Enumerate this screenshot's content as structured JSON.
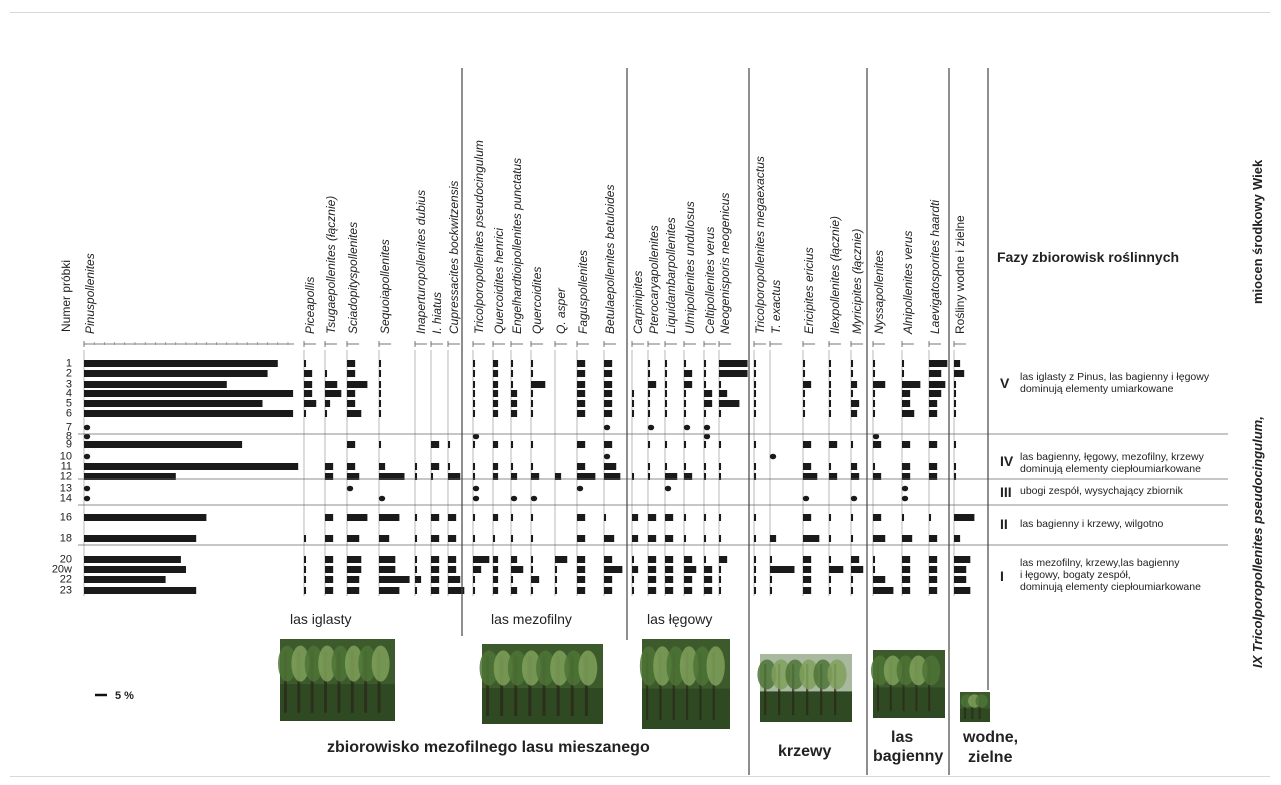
{
  "chart_data": {
    "type": "bar",
    "subtype": "pollen-diagram",
    "unit_scale_label": "5 %",
    "sample_header": "Numer próbki",
    "samples": [
      "1",
      "2",
      "3",
      "4",
      "5",
      "6",
      "7",
      "8",
      "9",
      "10",
      "11",
      "12",
      "13",
      "14",
      "16",
      "18",
      "20",
      "20w",
      "22",
      "23"
    ],
    "taxa": [
      {
        "name": "Pinuspollenites",
        "style": "italic",
        "values": [
          19,
          18,
          14,
          20.5,
          17.5,
          20.5,
          0,
          0,
          15.5,
          0,
          21,
          9,
          0,
          0,
          12,
          11,
          9.5,
          10,
          8,
          11
        ]
      },
      {
        "name": "Piceapollis",
        "style": "italic",
        "values": [
          0.2,
          0.8,
          0.8,
          0.8,
          1.2,
          0.2,
          0,
          0,
          0,
          0,
          0,
          0,
          0,
          0,
          0,
          0.2,
          0.2,
          0.2,
          0.2,
          0.2
        ]
      },
      {
        "name": "Tsugaepollenites (łącznie)",
        "style": "italic",
        "values": [
          0,
          0.2,
          1.2,
          1.6,
          0.5,
          0.2,
          0,
          0,
          0,
          0,
          0.8,
          0.8,
          0,
          0,
          0.8,
          0.8,
          0.8,
          0.8,
          0.8,
          0.8
        ]
      },
      {
        "name": "Sciadopityspollenites",
        "style": "italic",
        "values": [
          0.8,
          0.8,
          2,
          0.8,
          0.8,
          1.4,
          0,
          0,
          0.8,
          0,
          0.8,
          1.2,
          0,
          0,
          2,
          1.2,
          1.4,
          1.4,
          1.2,
          1.2
        ]
      },
      {
        "name": "Sequoiapollenites",
        "style": "italic",
        "values": [
          0.2,
          0.2,
          0.2,
          0.2,
          0.2,
          0.2,
          0,
          0,
          0.2,
          0,
          0.6,
          2.5,
          0,
          0,
          2,
          1,
          1.6,
          1.6,
          3,
          2
        ]
      },
      {
        "name": "Inaperturopollenites dubius",
        "style": "italic",
        "values": [
          0,
          0,
          0,
          0,
          0,
          0,
          0,
          0,
          0,
          0,
          0.2,
          0.2,
          0,
          0,
          0.2,
          0.2,
          0.2,
          0.2,
          0.6,
          0.2
        ]
      },
      {
        "name": "I. hiatus",
        "style": "italic",
        "values": [
          0,
          0,
          0,
          0,
          0,
          0,
          0,
          0,
          0.8,
          0,
          0.8,
          0.2,
          0,
          0,
          0.8,
          0.8,
          0.8,
          0.8,
          0.8,
          0.8
        ]
      },
      {
        "name": "Cupressacites bockwitzensis",
        "style": "italic",
        "values": [
          0,
          0,
          0,
          0,
          0,
          0,
          0,
          0,
          0.2,
          0,
          0.2,
          1.2,
          0,
          0,
          0.8,
          0.8,
          0.8,
          0.8,
          1.2,
          1.6
        ]
      },
      {
        "name": "Tricolporopollenites pseudocingulum",
        "style": "italic",
        "values": [
          0.2,
          0.2,
          0.2,
          0.2,
          0.2,
          0.2,
          0,
          0,
          0.2,
          0,
          0.2,
          0.2,
          0,
          0,
          0.2,
          0.2,
          1.6,
          0.8,
          0.2,
          0.2
        ]
      },
      {
        "name": "Quercoidites henrici",
        "style": "italic",
        "values": [
          0.5,
          0.5,
          0.5,
          0.5,
          0.5,
          0.5,
          0,
          0,
          0.5,
          0,
          0.5,
          0.5,
          0,
          0,
          0.5,
          0.2,
          0.5,
          0.5,
          0.5,
          0.5
        ]
      },
      {
        "name": "Engelhardtioipollenites punctatus",
        "style": "italic",
        "values": [
          0.2,
          0.2,
          0.2,
          0.6,
          0.6,
          0.6,
          0,
          0,
          0.2,
          0,
          0.2,
          0.6,
          0,
          0,
          0.2,
          0.2,
          0.6,
          1.2,
          0.2,
          0.6
        ]
      },
      {
        "name": "Quercoidites",
        "style": "italic",
        "values": [
          0.2,
          0.2,
          1.4,
          0.2,
          0.2,
          0.2,
          0,
          0,
          0.2,
          0,
          0.2,
          0.8,
          0,
          0,
          0.2,
          0.2,
          0.2,
          0.2,
          0.8,
          0.2
        ]
      },
      {
        "name": "Q. asper",
        "style": "italic",
        "values": [
          0,
          0,
          0,
          0,
          0,
          0,
          0,
          0,
          0,
          0,
          0,
          0.6,
          0,
          0,
          0,
          0,
          1.2,
          0.2,
          0.2,
          0.2
        ]
      },
      {
        "name": "Faguspollenites",
        "style": "italic",
        "values": [
          0.8,
          0.8,
          0.8,
          0.8,
          0.8,
          0.8,
          0,
          0,
          0.8,
          0,
          0.8,
          1.8,
          0,
          0,
          0.8,
          0.8,
          0.8,
          0.8,
          0.8,
          0.8
        ]
      },
      {
        "name": "Betulaepollenites betuloides",
        "style": "italic",
        "values": [
          0.8,
          0.8,
          0.8,
          0.8,
          0.8,
          0.8,
          0,
          0,
          0.8,
          0,
          1.2,
          1.6,
          0,
          0,
          0.2,
          1,
          0.8,
          1.8,
          0.8,
          0.8
        ]
      },
      {
        "name": "Carpinipites",
        "style": "italic",
        "values": [
          0,
          0,
          0,
          0.2,
          0.2,
          0.2,
          0,
          0,
          0,
          0,
          0,
          0.2,
          0,
          0,
          0.6,
          0.6,
          0.2,
          0.6,
          0.2,
          0.2
        ]
      },
      {
        "name": "Pterocaryapollenites",
        "style": "italic",
        "values": [
          0.2,
          0.2,
          0.8,
          0.2,
          0.2,
          0.2,
          0,
          0,
          0.2,
          0,
          0.2,
          0.2,
          0,
          0,
          0.8,
          0.8,
          0.8,
          0.8,
          0.8,
          0.8
        ]
      },
      {
        "name": "Liquidambarpollenites",
        "style": "italic",
        "values": [
          0.2,
          0.2,
          0.2,
          0.2,
          0.2,
          0.2,
          0,
          0,
          0.2,
          0,
          0.2,
          1.2,
          0,
          0,
          0.8,
          0.8,
          0.8,
          0.8,
          0.8,
          0.8
        ]
      },
      {
        "name": "Ulmipollenites undulosus",
        "style": "italic",
        "values": [
          0.2,
          0.8,
          0.8,
          0.2,
          0.2,
          0.2,
          0,
          0,
          0.2,
          0,
          0.2,
          0.8,
          0,
          0,
          0.2,
          0.2,
          0.8,
          1.2,
          0.8,
          0.8
        ]
      },
      {
        "name": "Celtipollenites verus",
        "style": "italic",
        "values": [
          0.2,
          0.2,
          0.2,
          0.8,
          0.8,
          0.2,
          0,
          0,
          0.2,
          0,
          0.2,
          0.2,
          0,
          0,
          0.2,
          0.2,
          0.2,
          0.8,
          0.8,
          0.8
        ]
      },
      {
        "name": "Neogenisporis neogenicus",
        "style": "italic",
        "values": [
          2.8,
          2.8,
          0.2,
          0.8,
          2,
          0.2,
          0,
          0,
          0.2,
          0,
          0.2,
          0.2,
          0,
          0,
          0.2,
          0.2,
          0.8,
          0.2,
          0.2,
          0.2
        ]
      },
      {
        "name": "Tricolporopollenites megaexactus",
        "style": "italic",
        "values": [
          0.2,
          0.2,
          0.2,
          0.2,
          0.2,
          0.2,
          0,
          0,
          0.2,
          0,
          0.2,
          0.2,
          0,
          0,
          0.2,
          0.2,
          0.2,
          0.2,
          0.2,
          0.2
        ]
      },
      {
        "name": "T. exactus",
        "style": "italic",
        "values": [
          0,
          0,
          0,
          0,
          0,
          0,
          0,
          0,
          0,
          0,
          0,
          0,
          0,
          0,
          0,
          0.6,
          0.2,
          2.4,
          0.2,
          0.2
        ]
      },
      {
        "name": "Ericipites ericius",
        "style": "italic",
        "values": [
          0.2,
          0.2,
          0.8,
          0.2,
          0.2,
          0.2,
          0,
          0,
          0.8,
          0,
          0.8,
          1.4,
          0,
          0,
          0.8,
          1.6,
          0.8,
          0.8,
          0.8,
          0.8
        ]
      },
      {
        "name": "Ilexpollenites (łącznie)",
        "style": "italic",
        "values": [
          0.2,
          0.2,
          0.2,
          0.2,
          0.2,
          0.2,
          0,
          0,
          0.8,
          0,
          0.2,
          0.8,
          0,
          0,
          0.2,
          0.2,
          0.2,
          1.4,
          0.2,
          0.2
        ]
      },
      {
        "name": "Myricipites (łącznie)",
        "style": "italic",
        "values": [
          0.2,
          0.2,
          0.6,
          0.2,
          0.8,
          0.6,
          0,
          0,
          0.2,
          0,
          0.6,
          0.8,
          0,
          0,
          0.2,
          0.2,
          0.8,
          1.2,
          0.2,
          0.2
        ]
      },
      {
        "name": "Nyssapollenites",
        "style": "italic",
        "values": [
          0.2,
          0.2,
          1.2,
          0.2,
          0.2,
          0.2,
          0,
          0,
          0.8,
          0,
          0.2,
          0.8,
          0,
          0,
          0.8,
          1.2,
          0.2,
          0.2,
          1.2,
          2
        ]
      },
      {
        "name": "Alnipollenites verus",
        "style": "italic",
        "values": [
          0.2,
          0.2,
          1.8,
          0.8,
          0.8,
          1.2,
          0,
          0,
          0.8,
          0,
          0.8,
          0.8,
          0,
          0,
          0.2,
          1,
          0.8,
          0.8,
          0.8,
          0.8
        ]
      },
      {
        "name": "Laevigatosporites haardti",
        "style": "italic",
        "values": [
          1.8,
          1.2,
          1.6,
          1.2,
          0.8,
          0.8,
          0,
          0,
          0.8,
          0,
          0.8,
          0.8,
          0,
          0,
          0.2,
          0.8,
          0.8,
          0.8,
          0.8,
          0.8
        ]
      },
      {
        "name": "Rośliny wodne i zielne",
        "style": "normal",
        "values": [
          0.6,
          1,
          0.2,
          0.2,
          0.2,
          0.2,
          0,
          0,
          0.2,
          0,
          0.2,
          0.2,
          0,
          0,
          2,
          0.6,
          1.6,
          1.2,
          1.2,
          1.6
        ]
      }
    ],
    "markers": [
      {
        "taxon": "Pinuspollenites",
        "sample": "7"
      },
      {
        "taxon": "Pinuspollenites",
        "sample": "8"
      },
      {
        "taxon": "Pinuspollenites",
        "sample": "10"
      },
      {
        "taxon": "Pinuspollenites",
        "sample": "13"
      },
      {
        "taxon": "Pinuspollenites",
        "sample": "14"
      },
      {
        "taxon": "Sciadopityspollenites",
        "sample": "13"
      },
      {
        "taxon": "Sequoiapollenites",
        "sample": "14"
      },
      {
        "taxon": "Tricolporopollenites pseudocingulum",
        "sample": "8"
      },
      {
        "taxon": "Tricolporopollenites pseudocingulum",
        "sample": "13"
      },
      {
        "taxon": "Tricolporopollenites pseudocingulum",
        "sample": "14"
      },
      {
        "taxon": "Engelhardtioipollenites punctatus",
        "sample": "14"
      },
      {
        "taxon": "Quercoidites",
        "sample": "14"
      },
      {
        "taxon": "Faguspollenites",
        "sample": "13"
      },
      {
        "taxon": "Betulaepollenites betuloides",
        "sample": "7"
      },
      {
        "taxon": "Betulaepollenites betuloides",
        "sample": "10"
      },
      {
        "taxon": "Pterocaryapollenites",
        "sample": "7"
      },
      {
        "taxon": "Ulmipollenites undulosus",
        "sample": "7"
      },
      {
        "taxon": "Liquidambarpollenites",
        "sample": "13"
      },
      {
        "taxon": "Celtipollenites verus",
        "sample": "7"
      },
      {
        "taxon": "Celtipollenites verus",
        "sample": "8"
      },
      {
        "taxon": "T. exactus",
        "sample": "10"
      },
      {
        "taxon": "Ericipites ericius",
        "sample": "14"
      },
      {
        "taxon": "Myricipites (łącznie)",
        "sample": "14"
      },
      {
        "taxon": "Nyssapollenites",
        "sample": "8"
      },
      {
        "taxon": "Alnipollenites verus",
        "sample": "13"
      },
      {
        "taxon": "Alnipollenites verus",
        "sample": "14"
      }
    ],
    "phases": {
      "header": "Fazy zbiorowisk roślinnych",
      "items": [
        {
          "num": "V",
          "lines": [
            "las iglasty z Pinus, las bagienny i łęgowy",
            "dominują elementy umiarkowane"
          ]
        },
        {
          "num": "IV",
          "lines": [
            "las bagienny, łęgowy, mezofilny, krzewy",
            "dominują elementy ciepłoumiarkowane"
          ]
        },
        {
          "num": "III",
          "lines": [
            "ubogi zespół, wysychający zbiornik"
          ]
        },
        {
          "num": "II",
          "lines": [
            "las bagienny i krzewy, wilgotno"
          ]
        },
        {
          "num": "I",
          "lines": [
            "las mezofilny, krzewy,las bagienny",
            "i łęgowy, bogaty zespół,",
            "dominują elementy ciepłoumiarkowane"
          ]
        }
      ]
    },
    "side_title": "IX Tricolporopollenites pseudocingulum,",
    "side_age": "miocen środkowy",
    "side_wiek": "Wiek",
    "vegetation_labels": [
      "las iglasty",
      "las mezofilny",
      "las łęgowy"
    ],
    "bottom_labels": {
      "mixed_forest": "zbiorowisko mezofilnego lasu mieszanego",
      "shrubs": "krzewy",
      "swamp": [
        "las",
        "bagienny"
      ],
      "aquatic": [
        "wodne,",
        "zielne"
      ]
    },
    "photos": [
      "coniferous-forest-photo",
      "mesophilic-forest-photo",
      "riparian-forest-photo",
      "shrubs-photo",
      "swamp-forest-photo",
      "aquatic-herbaceous-photo"
    ],
    "colors": {
      "bar": "#1a1a1a",
      "grid": "#666666",
      "photo_green_dark": "#2f4a22",
      "photo_green_light": "#7fa05a"
    }
  }
}
